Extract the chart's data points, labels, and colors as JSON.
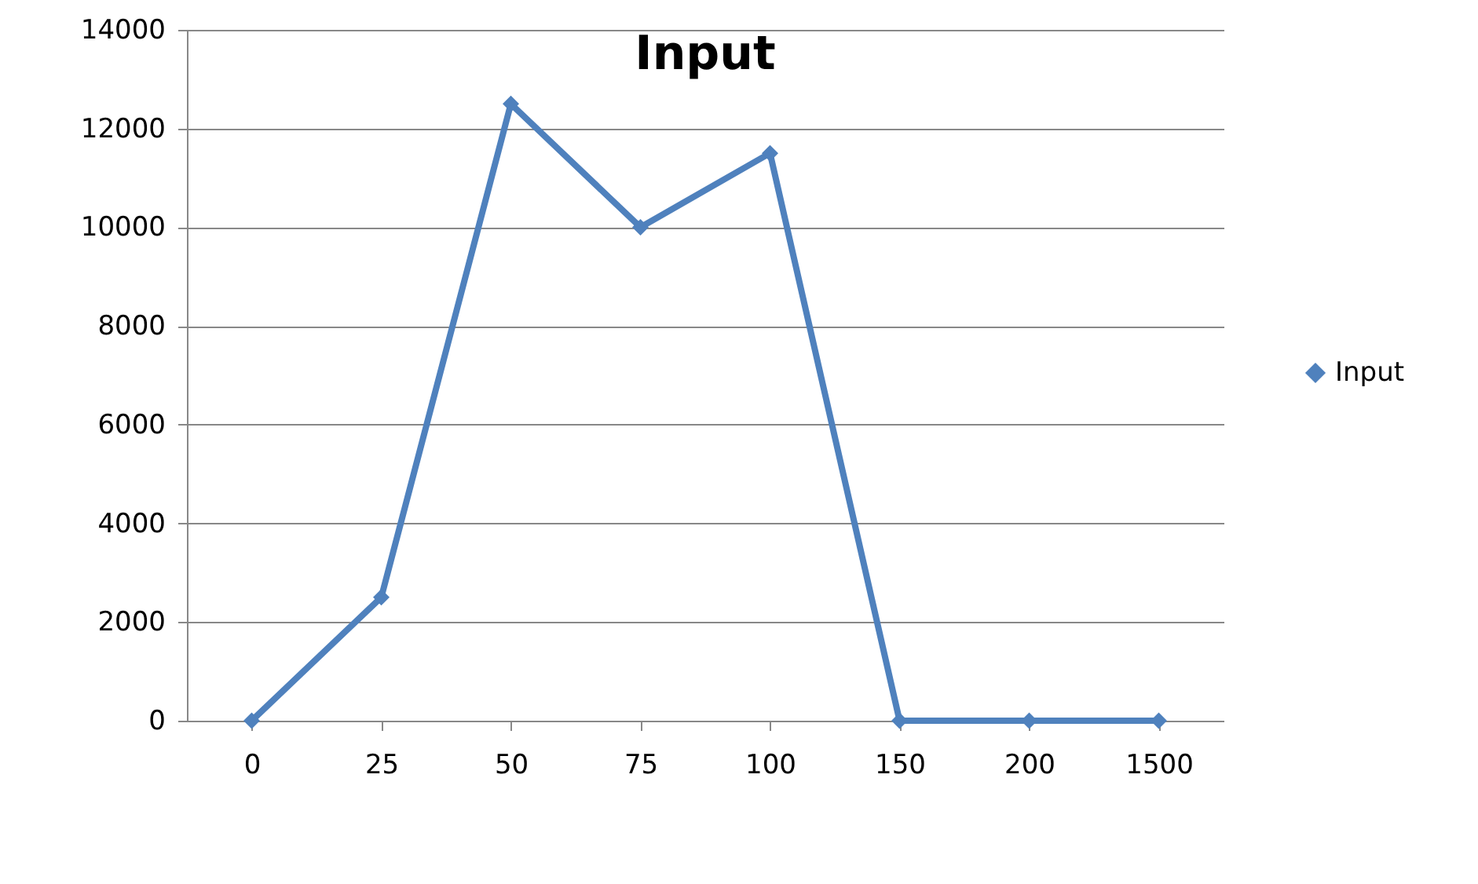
{
  "chart_data": {
    "type": "line",
    "title": "Input",
    "categories": [
      "0",
      "25",
      "50",
      "75",
      "100",
      "150",
      "200",
      "1500"
    ],
    "series": [
      {
        "name": "Input",
        "color": "#4f81bd",
        "values": [
          0,
          2500,
          12500,
          10000,
          11500,
          0,
          0,
          0
        ]
      }
    ],
    "ylim": [
      0,
      14000
    ],
    "yticks": [
      0,
      2000,
      4000,
      6000,
      8000,
      10000,
      12000,
      14000
    ],
    "grid": "y",
    "legend": "right",
    "marker": "diamond",
    "line_style": "solid"
  }
}
